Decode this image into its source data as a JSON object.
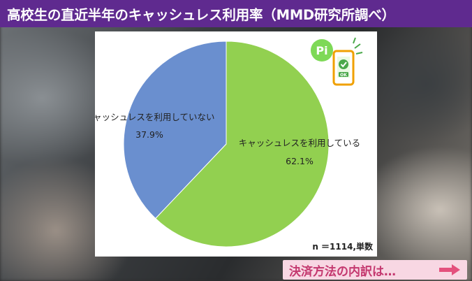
{
  "header": {
    "title": "高校生の直近半年のキャッシュレス利用率（MMD研究所調べ）"
  },
  "chart_data": {
    "type": "pie",
    "slices": [
      {
        "label": "キャッシュレスを利用している",
        "value": 62.1,
        "value_label": "62.1%",
        "color": "#92d050"
      },
      {
        "label": "キャッシュレスを利用していない",
        "value": 37.9,
        "value_label": "37.9%",
        "color": "#6a8fcf"
      }
    ],
    "note": "n ＝1114,単数",
    "logo_text": "Pi",
    "logo_badge_text": "OK"
  },
  "footer": {
    "next_label": "決済方法の内訳は…"
  },
  "icons": {
    "logo": "pi-phone-check-icon",
    "next": "arrow-right-icon"
  },
  "colors": {
    "title_bg": "#5f2a8f",
    "banner_bg": "#f8d7e3",
    "banner_text": "#c4386f"
  }
}
